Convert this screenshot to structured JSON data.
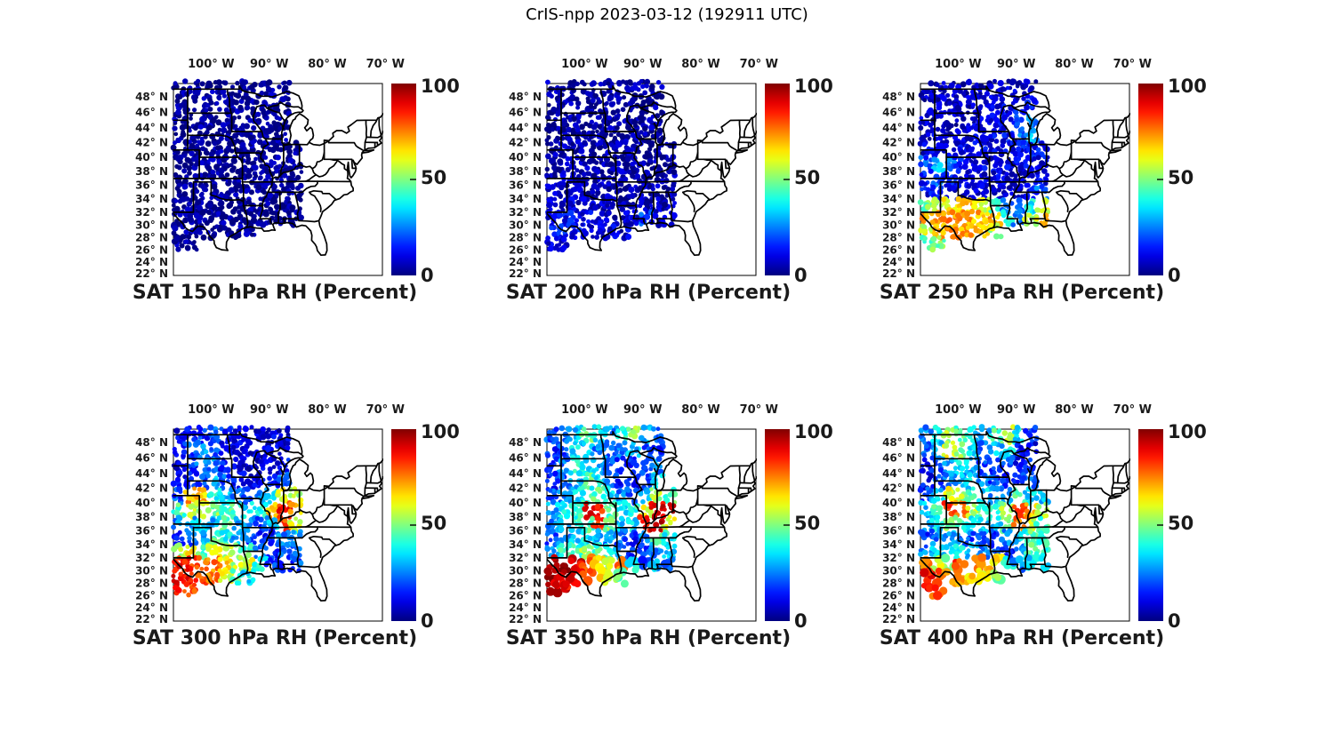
{
  "figure_title": "CrIS-npp 2023-03-12 (192911 UTC)",
  "chart_data": {
    "type": "scatter",
    "variant": "satellite-sounding-rh-maps",
    "title": "CrIS-npp 2023-03-12 (192911 UTC)",
    "colormap": "jet",
    "colormap_colors": {
      "low": "#00008f",
      "mid": "#80ff80",
      "high": "#800000"
    },
    "colorbar": {
      "min": 0,
      "max": 100,
      "tick_values": [
        100,
        50,
        0
      ],
      "tick_labels": [
        "100",
        "50",
        "0"
      ]
    },
    "axes": {
      "lon_tick_labels": [
        "100° W",
        "90° W",
        "80° W",
        "70° W"
      ],
      "lon_tick_values_w": [
        100,
        90,
        80,
        70
      ],
      "lat_tick_labels": [
        "48° N",
        "46° N",
        "44° N",
        "42° N",
        "40° N",
        "38° N",
        "36° N",
        "34° N",
        "32° N",
        "30° N",
        "28° N",
        "26° N",
        "24° N",
        "22° N"
      ],
      "lat_tick_values": [
        48,
        46,
        44,
        42,
        40,
        38,
        36,
        34,
        32,
        30,
        28,
        26,
        24,
        22
      ],
      "lon_range_deg_w": [
        106.5,
        70.3
      ],
      "lat_range_deg_n": [
        21.7,
        49.8
      ],
      "grid_lines": false
    },
    "units": "Percent",
    "grid": {
      "lons_deg_w": [
        105.5,
        103.5,
        101.5,
        99.5,
        97.5,
        95.5,
        93.5,
        91.5,
        89.5,
        87.5,
        85.5
      ],
      "lats_deg_n": [
        49,
        47,
        45,
        43,
        41,
        39,
        37,
        35,
        33,
        31,
        29,
        27
      ],
      "cell_size_deg": 2
    },
    "panels": [
      {
        "title": "SAT 150 hPa RH (Percent)",
        "level_hpa": 150,
        "rh": [
          [
            2,
            2,
            2,
            2,
            2,
            2,
            2,
            2,
            2,
            2,
            null
          ],
          [
            2,
            2,
            2,
            2,
            2,
            2,
            2,
            2,
            2,
            2,
            null
          ],
          [
            2,
            2,
            2,
            2,
            2,
            2,
            2,
            2,
            2,
            2,
            null
          ],
          [
            2,
            2,
            2,
            2,
            2,
            2,
            2,
            2,
            2,
            2,
            null
          ],
          [
            2,
            2,
            2,
            2,
            2,
            2,
            2,
            2,
            2,
            2,
            2
          ],
          [
            2,
            2,
            2,
            2,
            2,
            2,
            2,
            2,
            2,
            2,
            2
          ],
          [
            2,
            2,
            2,
            2,
            2,
            2,
            2,
            2,
            2,
            2,
            2
          ],
          [
            2,
            2,
            2,
            2,
            2,
            2,
            2,
            2,
            2,
            2,
            2
          ],
          [
            2,
            2,
            2,
            2,
            2,
            2,
            2,
            2,
            2,
            2,
            2
          ],
          [
            2,
            2,
            2,
            2,
            2,
            2,
            2,
            2,
            2,
            2,
            2
          ],
          [
            2,
            2,
            2,
            2,
            2,
            2,
            2,
            null,
            null,
            null,
            null
          ],
          [
            2,
            2,
            null,
            null,
            null,
            null,
            null,
            null,
            null,
            null,
            null
          ]
        ]
      },
      {
        "title": "SAT 200 hPa RH (Percent)",
        "level_hpa": 200,
        "rh": [
          [
            3,
            3,
            3,
            3,
            3,
            3,
            3,
            3,
            3,
            3,
            null
          ],
          [
            3,
            3,
            3,
            3,
            3,
            3,
            3,
            3,
            3,
            3,
            null
          ],
          [
            3,
            3,
            3,
            3,
            3,
            3,
            3,
            3,
            3,
            3,
            null
          ],
          [
            3,
            3,
            3,
            3,
            3,
            3,
            3,
            3,
            3,
            3,
            null
          ],
          [
            4,
            4,
            3,
            3,
            3,
            3,
            3,
            3,
            3,
            3,
            3
          ],
          [
            5,
            5,
            4,
            4,
            3,
            3,
            3,
            3,
            3,
            3,
            3
          ],
          [
            5,
            5,
            5,
            4,
            4,
            4,
            4,
            3,
            3,
            3,
            3
          ],
          [
            6,
            6,
            6,
            5,
            5,
            5,
            4,
            4,
            4,
            4,
            4
          ],
          [
            8,
            9,
            9,
            8,
            7,
            6,
            6,
            5,
            5,
            6,
            6
          ],
          [
            10,
            12,
            12,
            10,
            9,
            8,
            8,
            8,
            18,
            8,
            7
          ],
          [
            13,
            14,
            12,
            11,
            10,
            9,
            8,
            null,
            null,
            null,
            null
          ],
          [
            9,
            9,
            null,
            null,
            null,
            null,
            null,
            null,
            null,
            null,
            null
          ]
        ]
      },
      {
        "title": "SAT 250 hPa RH (Percent)",
        "level_hpa": 250,
        "rh": [
          [
            6,
            5,
            5,
            5,
            6,
            6,
            7,
            8,
            8,
            8,
            null
          ],
          [
            6,
            6,
            5,
            5,
            6,
            7,
            8,
            9,
            10,
            12,
            null
          ],
          [
            7,
            7,
            6,
            6,
            7,
            8,
            10,
            12,
            18,
            25,
            null
          ],
          [
            8,
            8,
            7,
            7,
            8,
            9,
            10,
            12,
            22,
            30,
            null
          ],
          [
            10,
            13,
            10,
            9,
            9,
            10,
            10,
            10,
            12,
            15,
            12
          ],
          [
            20,
            32,
            22,
            12,
            10,
            10,
            10,
            10,
            10,
            12,
            10
          ],
          [
            15,
            20,
            15,
            10,
            9,
            9,
            9,
            9,
            8,
            10,
            10
          ],
          [
            12,
            12,
            10,
            9,
            8,
            8,
            8,
            8,
            8,
            12,
            22
          ],
          [
            48,
            55,
            62,
            65,
            65,
            60,
            42,
            25,
            20,
            38,
            58
          ],
          [
            70,
            72,
            73,
            72,
            70,
            70,
            68,
            42,
            28,
            58,
            70
          ],
          [
            58,
            70,
            72,
            72,
            70,
            68,
            55,
            null,
            null,
            null,
            null
          ],
          [
            45,
            50,
            null,
            null,
            null,
            null,
            null,
            null,
            null,
            null,
            null
          ]
        ]
      },
      {
        "title": "SAT 300 hPa RH (Percent)",
        "level_hpa": 300,
        "rh": [
          [
            10,
            12,
            16,
            22,
            15,
            10,
            8,
            8,
            10,
            8,
            null
          ],
          [
            12,
            18,
            26,
            20,
            12,
            8,
            8,
            8,
            8,
            8,
            null
          ],
          [
            10,
            15,
            30,
            25,
            15,
            10,
            8,
            8,
            10,
            12,
            null
          ],
          [
            12,
            15,
            20,
            30,
            20,
            12,
            10,
            10,
            16,
            25,
            null
          ],
          [
            20,
            72,
            68,
            40,
            30,
            25,
            20,
            25,
            35,
            62,
            55
          ],
          [
            45,
            60,
            55,
            50,
            40,
            45,
            35,
            40,
            70,
            85,
            70
          ],
          [
            25,
            30,
            35,
            30,
            45,
            30,
            25,
            20,
            30,
            80,
            60
          ],
          [
            15,
            20,
            30,
            45,
            40,
            30,
            20,
            15,
            15,
            25,
            30
          ],
          [
            55,
            65,
            45,
            60,
            55,
            50,
            45,
            25,
            15,
            20,
            25
          ],
          [
            86,
            85,
            80,
            75,
            65,
            55,
            60,
            40,
            20,
            15,
            20
          ],
          [
            88,
            85,
            82,
            75,
            60,
            45,
            35,
            null,
            null,
            null,
            null
          ],
          [
            85,
            80,
            null,
            null,
            null,
            null,
            null,
            null,
            null,
            null,
            null
          ]
        ]
      },
      {
        "title": "SAT 350 hPa RH (Percent)",
        "level_hpa": 350,
        "rh": [
          [
            20,
            25,
            30,
            46,
            35,
            25,
            42,
            52,
            30,
            25,
            null
          ],
          [
            15,
            20,
            35,
            30,
            25,
            20,
            25,
            30,
            20,
            15,
            null
          ],
          [
            18,
            25,
            40,
            35,
            30,
            20,
            15,
            15,
            20,
            25,
            null
          ],
          [
            15,
            20,
            30,
            45,
            35,
            25,
            15,
            12,
            20,
            35,
            null
          ],
          [
            20,
            25,
            35,
            40,
            45,
            35,
            25,
            20,
            30,
            55,
            45
          ],
          [
            30,
            35,
            45,
            90,
            85,
            45,
            35,
            40,
            60,
            90,
            92
          ],
          [
            25,
            30,
            40,
            45,
            85,
            50,
            30,
            35,
            88,
            92,
            60
          ],
          [
            20,
            25,
            30,
            35,
            30,
            25,
            20,
            15,
            25,
            45,
            40
          ],
          [
            30,
            45,
            40,
            55,
            45,
            35,
            25,
            15,
            20,
            25,
            35
          ],
          [
            92,
            95,
            90,
            80,
            70,
            55,
            75,
            40,
            20,
            30,
            25
          ],
          [
            95,
            92,
            90,
            85,
            70,
            60,
            45,
            null,
            null,
            null,
            null
          ],
          [
            92,
            90,
            null,
            null,
            null,
            null,
            null,
            null,
            null,
            null,
            null
          ]
        ]
      },
      {
        "title": "SAT 400 hPa RH (Percent)",
        "level_hpa": 400,
        "rh": [
          [
            25,
            35,
            55,
            45,
            35,
            30,
            45,
            55,
            35,
            15,
            null
          ],
          [
            20,
            30,
            60,
            50,
            35,
            25,
            30,
            40,
            15,
            12,
            null
          ],
          [
            15,
            20,
            30,
            35,
            25,
            20,
            15,
            20,
            12,
            15,
            null
          ],
          [
            12,
            18,
            25,
            30,
            35,
            25,
            18,
            15,
            20,
            25,
            null
          ],
          [
            20,
            35,
            60,
            55,
            45,
            35,
            25,
            30,
            45,
            35,
            30
          ],
          [
            30,
            45,
            80,
            75,
            55,
            45,
            40,
            55,
            85,
            70,
            55
          ],
          [
            25,
            35,
            50,
            45,
            40,
            35,
            30,
            45,
            75,
            55,
            45
          ],
          [
            18,
            25,
            30,
            25,
            20,
            18,
            15,
            25,
            35,
            45,
            40
          ],
          [
            25,
            35,
            30,
            35,
            30,
            25,
            20,
            15,
            25,
            45,
            40
          ],
          [
            75,
            60,
            45,
            80,
            75,
            70,
            65,
            40,
            25,
            35,
            35
          ],
          [
            85,
            80,
            75,
            70,
            65,
            60,
            50,
            null,
            null,
            null,
            null
          ],
          [
            85,
            80,
            null,
            null,
            null,
            null,
            null,
            null,
            null,
            null,
            null
          ]
        ]
      }
    ]
  }
}
